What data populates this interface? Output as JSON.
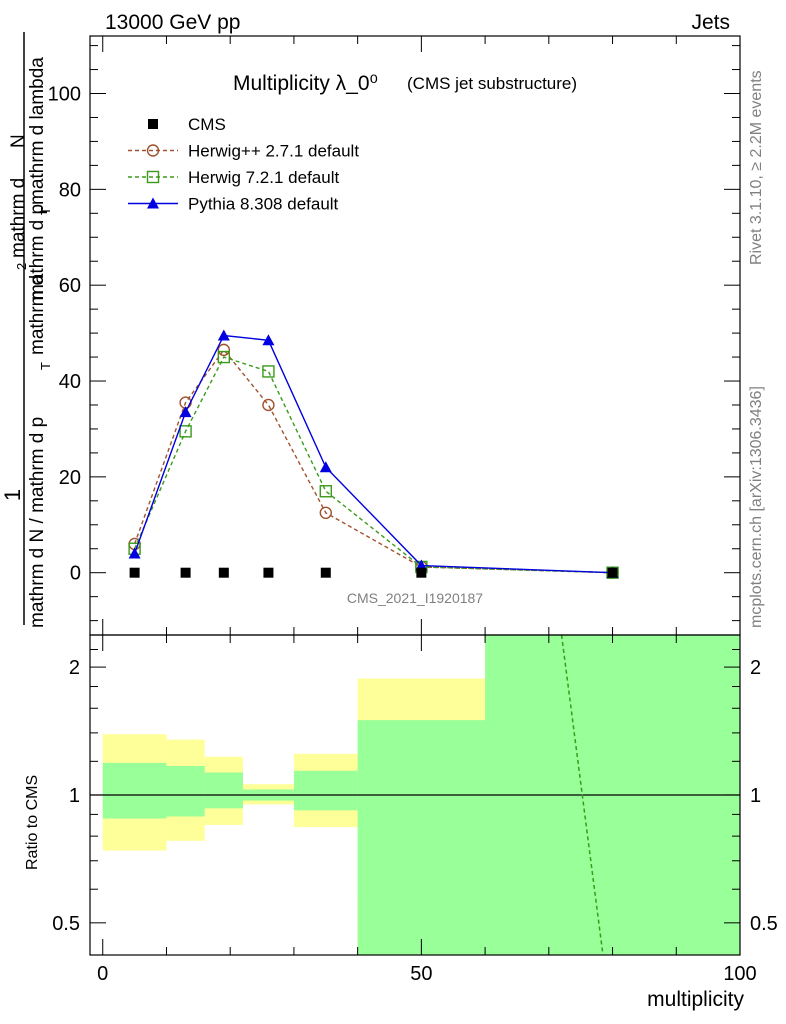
{
  "header": {
    "left": "13000 GeV pp",
    "right": "Jets"
  },
  "side_text": {
    "rivet": "Rivet 3.1.10, ≥ 2.2M events",
    "mcplots": "mcplots.cern.ch [arXiv:1306.3436]"
  },
  "chart_data": [
    {
      "type": "line",
      "title": "Multiplicity λ_0⁰",
      "subtitle": "(CMS jet substructure)",
      "watermark": "CMS_2021_I1920187",
      "ylabel": "1 / mathrm d N / mathrm d p_T mathrm d²N / mathrm d p_T mathrm d lambda",
      "ylabel_parts": {
        "numerator": "1",
        "denominator": "mathrm d N / mathrm d p",
        "rest_a": "mathrm d",
        "rest_b": "N",
        "rest_c": "mathrm d p",
        "rest_d": "mathrm d lambda",
        "sub_T": "T",
        "sup_2": "2"
      },
      "xlim": [
        -2,
        100
      ],
      "ylim": [
        -13,
        112
      ],
      "yticks": [
        0,
        20,
        40,
        60,
        80,
        100
      ],
      "series": [
        {
          "name": "CMS",
          "color": "#000000",
          "marker": "square",
          "x": [
            5,
            13,
            19,
            26,
            35,
            50,
            80
          ],
          "y": [
            0,
            0,
            0,
            0,
            0,
            0,
            0
          ]
        },
        {
          "name": "Herwig++ 2.7.1 default",
          "color": "#a0522d",
          "marker": "open-circle",
          "dashed": true,
          "x": [
            5,
            13,
            19,
            26,
            35,
            50,
            80
          ],
          "y": [
            6.0,
            35.5,
            46.5,
            35.0,
            12.5,
            1.2,
            0.0
          ]
        },
        {
          "name": "Herwig 7.2.1 default",
          "color": "#3a9a1a",
          "marker": "open-square",
          "dashed": true,
          "x": [
            5,
            13,
            19,
            26,
            35,
            50,
            80
          ],
          "y": [
            5.0,
            29.5,
            45.0,
            42.0,
            17.0,
            1.2,
            0.0
          ]
        },
        {
          "name": "Pythia 8.308 default",
          "color": "#0000e0",
          "marker": "triangle",
          "x": [
            5,
            13,
            19,
            26,
            35,
            50,
            80
          ],
          "y": [
            4.0,
            33.5,
            49.5,
            48.5,
            22.0,
            1.5,
            0.0
          ]
        }
      ]
    },
    {
      "type": "area",
      "ylabel": "Ratio to CMS",
      "xlabel": "multiplicity",
      "xlim": [
        -2,
        100
      ],
      "ylim": [
        0.42,
        2.38
      ],
      "log_y": true,
      "yticks": [
        0.5,
        1,
        2
      ],
      "xticks": [
        0,
        50,
        100
      ],
      "bands": [
        {
          "x": [
            0,
            10
          ],
          "green": [
            0.88,
            1.19
          ],
          "yellow": [
            0.74,
            1.39
          ]
        },
        {
          "x": [
            10,
            16
          ],
          "green": [
            0.89,
            1.17
          ],
          "yellow": [
            0.78,
            1.35
          ]
        },
        {
          "x": [
            16,
            22
          ],
          "green": [
            0.93,
            1.13
          ],
          "yellow": [
            0.85,
            1.23
          ]
        },
        {
          "x": [
            22,
            30
          ],
          "green": [
            0.97,
            1.03
          ],
          "yellow": [
            0.95,
            1.06
          ]
        },
        {
          "x": [
            30,
            40
          ],
          "green": [
            0.92,
            1.14
          ],
          "yellow": [
            0.84,
            1.25
          ]
        },
        {
          "x": [
            40,
            60
          ],
          "green": [
            0.42,
            1.5
          ],
          "yellow": [
            0.42,
            1.88
          ]
        },
        {
          "x": [
            60,
            100
          ],
          "green": [
            0.42,
            2.38
          ],
          "yellow": [
            0.42,
            2.38
          ]
        }
      ],
      "yellow_holes": [
        {
          "x": [
            40,
            60
          ],
          "lo": 0.42,
          "hi": 0.58
        }
      ],
      "ratio_line": {
        "color": "#3a9a1a",
        "x": [
          72,
          78.5
        ],
        "y": [
          2.38,
          0.42
        ]
      }
    }
  ]
}
